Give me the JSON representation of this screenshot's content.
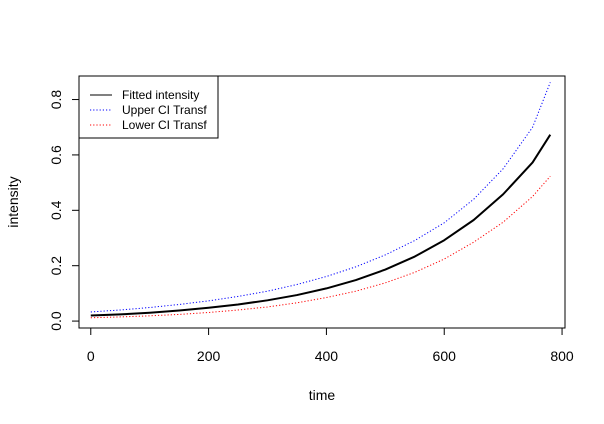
{
  "chart_data": {
    "type": "line",
    "title": "",
    "xlabel": "time",
    "ylabel": "intensity",
    "xlim": [
      -20,
      805
    ],
    "ylim": [
      -0.025,
      0.885
    ],
    "xticks": [
      0,
      200,
      400,
      600,
      800
    ],
    "yticks": [
      0.0,
      0.2,
      0.4,
      0.6,
      0.8
    ],
    "xtick_labels": [
      "0",
      "200",
      "400",
      "600",
      "800"
    ],
    "ytick_labels": [
      "0.0",
      "0.2",
      "0.4",
      "0.6",
      "0.8"
    ],
    "grid": false,
    "legend_position": "top-left",
    "x": [
      0,
      50,
      100,
      150,
      200,
      250,
      300,
      350,
      400,
      450,
      500,
      550,
      600,
      650,
      700,
      750,
      780
    ],
    "series": [
      {
        "name": "Fitted intensity",
        "color": "#000000",
        "style": "solid",
        "values": [
          0.02,
          0.024,
          0.03,
          0.038,
          0.048,
          0.06,
          0.075,
          0.094,
          0.118,
          0.148,
          0.186,
          0.233,
          0.292,
          0.365,
          0.458,
          0.573,
          0.673
        ]
      },
      {
        "name": "Upper CI Transf",
        "color": "#0000ff",
        "style": "dotted",
        "values": [
          0.033,
          0.04,
          0.049,
          0.06,
          0.073,
          0.089,
          0.108,
          0.132,
          0.161,
          0.196,
          0.239,
          0.291,
          0.355,
          0.44,
          0.55,
          0.7,
          0.862
        ]
      },
      {
        "name": "Lower CI Transf",
        "color": "#ff0000",
        "style": "dotted",
        "values": [
          0.012,
          0.015,
          0.019,
          0.024,
          0.031,
          0.04,
          0.051,
          0.066,
          0.085,
          0.108,
          0.138,
          0.176,
          0.224,
          0.285,
          0.357,
          0.45,
          0.523
        ]
      }
    ]
  }
}
